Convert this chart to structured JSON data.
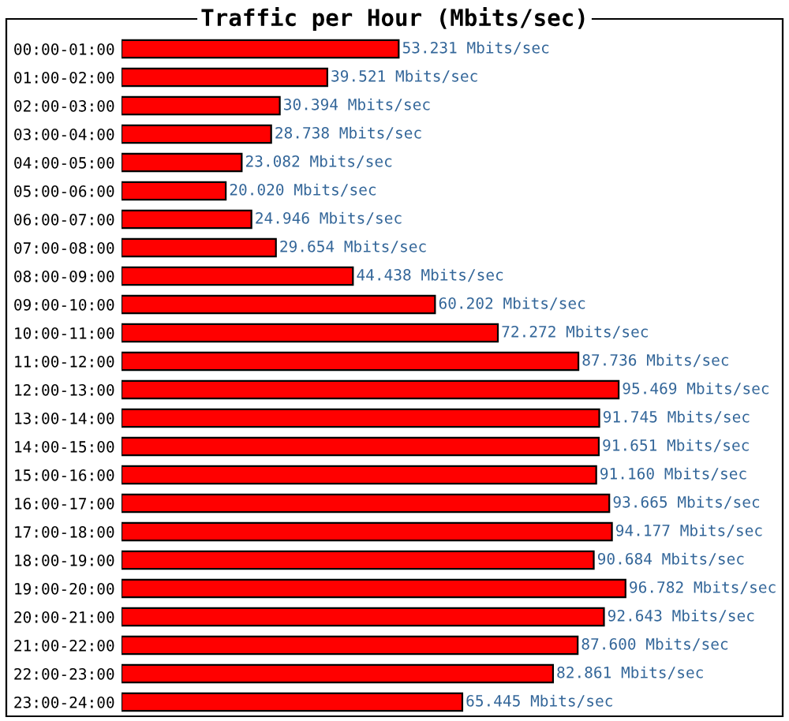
{
  "chart_data": {
    "type": "bar",
    "orientation": "horizontal",
    "title": "Traffic per Hour (Mbits/sec)",
    "categories": [
      "00:00-01:00",
      "01:00-02:00",
      "02:00-03:00",
      "03:00-04:00",
      "04:00-05:00",
      "05:00-06:00",
      "06:00-07:00",
      "07:00-08:00",
      "08:00-09:00",
      "09:00-10:00",
      "10:00-11:00",
      "11:00-12:00",
      "12:00-13:00",
      "13:00-14:00",
      "14:00-15:00",
      "15:00-16:00",
      "16:00-17:00",
      "17:00-18:00",
      "18:00-19:00",
      "19:00-20:00",
      "20:00-21:00",
      "21:00-22:00",
      "22:00-23:00",
      "23:00-24:00"
    ],
    "values": [
      53.231,
      39.521,
      30.394,
      28.738,
      23.082,
      20.02,
      24.946,
      29.654,
      44.438,
      60.202,
      72.272,
      87.736,
      95.469,
      91.745,
      91.651,
      91.16,
      93.665,
      94.177,
      90.684,
      96.782,
      92.643,
      87.6,
      82.861,
      65.445
    ],
    "value_labels": [
      "53.231 Mbits/sec",
      "39.521 Mbits/sec",
      "30.394 Mbits/sec",
      "28.738 Mbits/sec",
      "23.082 Mbits/sec",
      "20.020 Mbits/sec",
      "24.946 Mbits/sec",
      "29.654 Mbits/sec",
      "44.438 Mbits/sec",
      "60.202 Mbits/sec",
      "72.272 Mbits/sec",
      "87.736 Mbits/sec",
      "95.469 Mbits/sec",
      "91.745 Mbits/sec",
      "91.651 Mbits/sec",
      "91.160 Mbits/sec",
      "93.665 Mbits/sec",
      "94.177 Mbits/sec",
      "90.684 Mbits/sec",
      "96.782 Mbits/sec",
      "92.643 Mbits/sec",
      "87.600 Mbits/sec",
      "82.861 Mbits/sec",
      "65.445 Mbits/sec"
    ],
    "color": "#ff0000",
    "tick_labels": "y",
    "grid": false,
    "legend": false
  }
}
